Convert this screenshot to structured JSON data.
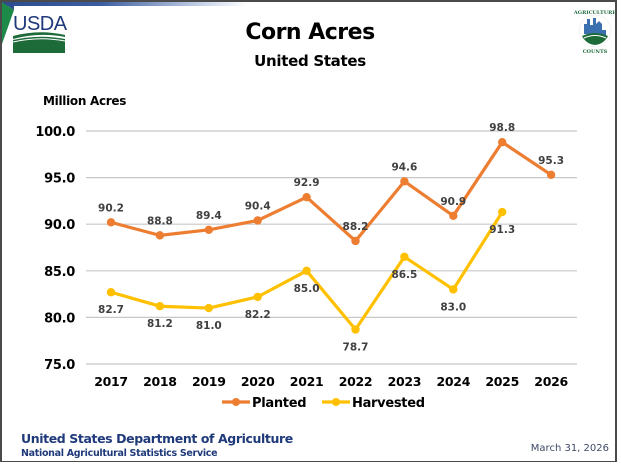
{
  "header": {
    "logo_left_text": "USDA",
    "logo_right_text_top": "AGRICULTURE",
    "logo_right_text_bottom": "COUNTS"
  },
  "footer": {
    "department": "United States Department of Agriculture",
    "service": "National Agricultural Statistics Service",
    "date": "March 31, 2026"
  },
  "colors": {
    "planted": "#ED7D31",
    "harvested": "#FFC000",
    "grid": "#c8c8c8",
    "brand_blue": "#1f3a7a",
    "brand_green": "#1e6b3a"
  },
  "chart_data": {
    "type": "line",
    "title": "Corn Acres",
    "subtitle": "United States",
    "xlabel": "",
    "ylabel": "Million Acres",
    "ylim": [
      75,
      100
    ],
    "yticks": [
      "75.0",
      "80.0",
      "85.0",
      "90.0",
      "95.0",
      "100.0"
    ],
    "ytick_values": [
      75,
      80,
      85,
      90,
      95,
      100
    ],
    "grid": true,
    "legend": "bottom",
    "categories": [
      "2017",
      "2018",
      "2019",
      "2020",
      "2021",
      "2022",
      "2023",
      "2024",
      "2025",
      "2026"
    ],
    "series": [
      {
        "name": "Planted",
        "values": [
          90.2,
          88.8,
          89.4,
          90.4,
          92.9,
          88.2,
          94.6,
          90.9,
          98.8,
          95.3
        ],
        "labels": [
          "90.2",
          "88.8",
          "89.4",
          "90.4",
          "92.9",
          "88.2",
          "94.6",
          "90.9",
          "98.8",
          "95.3"
        ],
        "label_position": "above"
      },
      {
        "name": "Harvested",
        "values": [
          82.7,
          81.2,
          81.0,
          82.2,
          85.0,
          78.7,
          86.5,
          83.0,
          91.3,
          null
        ],
        "labels": [
          "82.7",
          "81.2",
          "81.0",
          "82.2",
          "85.0",
          "78.7",
          "86.5",
          "83.0",
          "91.3",
          null
        ],
        "label_position": "below"
      }
    ]
  }
}
